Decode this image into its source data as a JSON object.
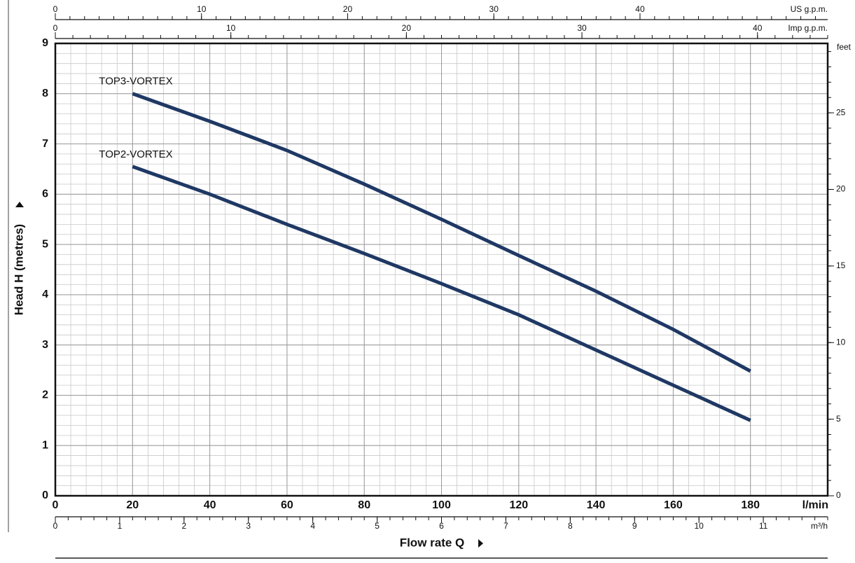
{
  "chart_data": {
    "type": "line",
    "x_label": "Flow rate  Q",
    "y_label": "Head H  (metres)",
    "x_unit": "l/min",
    "xlim": [
      0,
      200
    ],
    "ylim": [
      0,
      9
    ],
    "xticks": [
      0,
      20,
      40,
      60,
      80,
      100,
      120,
      140,
      160,
      180
    ],
    "yticks": [
      0,
      1,
      2,
      3,
      4,
      5,
      6,
      7,
      8,
      9
    ],
    "grid": true,
    "series": [
      {
        "name": "TOP3-VORTEX",
        "color": "#1f3864",
        "x": [
          20,
          40,
          60,
          80,
          100,
          120,
          140,
          160,
          180
        ],
        "values": [
          8.0,
          7.45,
          6.87,
          6.2,
          5.5,
          4.78,
          4.07,
          3.31,
          2.48
        ]
      },
      {
        "name": "TOP2-VORTEX",
        "color": "#1f3864",
        "x": [
          20,
          40,
          60,
          80,
          100,
          120,
          140,
          160,
          180
        ],
        "values": [
          6.55,
          6.0,
          5.4,
          4.82,
          4.22,
          3.6,
          2.9,
          2.2,
          1.5
        ]
      }
    ],
    "secondary_axes": [
      {
        "label": "US g.p.m.",
        "position": "top",
        "lim": [
          0,
          52.84
        ],
        "ticks": [
          0,
          10,
          20,
          30,
          40
        ]
      },
      {
        "label": "Imp g.p.m.",
        "position": "top",
        "lim": [
          0,
          44
        ],
        "ticks": [
          0,
          10,
          20,
          30,
          40
        ]
      },
      {
        "label": "m³/h",
        "position": "bottom",
        "lim": [
          0,
          12
        ],
        "ticks": [
          0,
          1,
          2,
          3,
          4,
          5,
          6,
          7,
          8,
          9,
          10,
          11
        ]
      },
      {
        "label": "feet",
        "position": "right",
        "lim": [
          0,
          29.53
        ],
        "ticks": [
          0,
          5,
          10,
          15,
          20,
          25
        ]
      }
    ]
  }
}
